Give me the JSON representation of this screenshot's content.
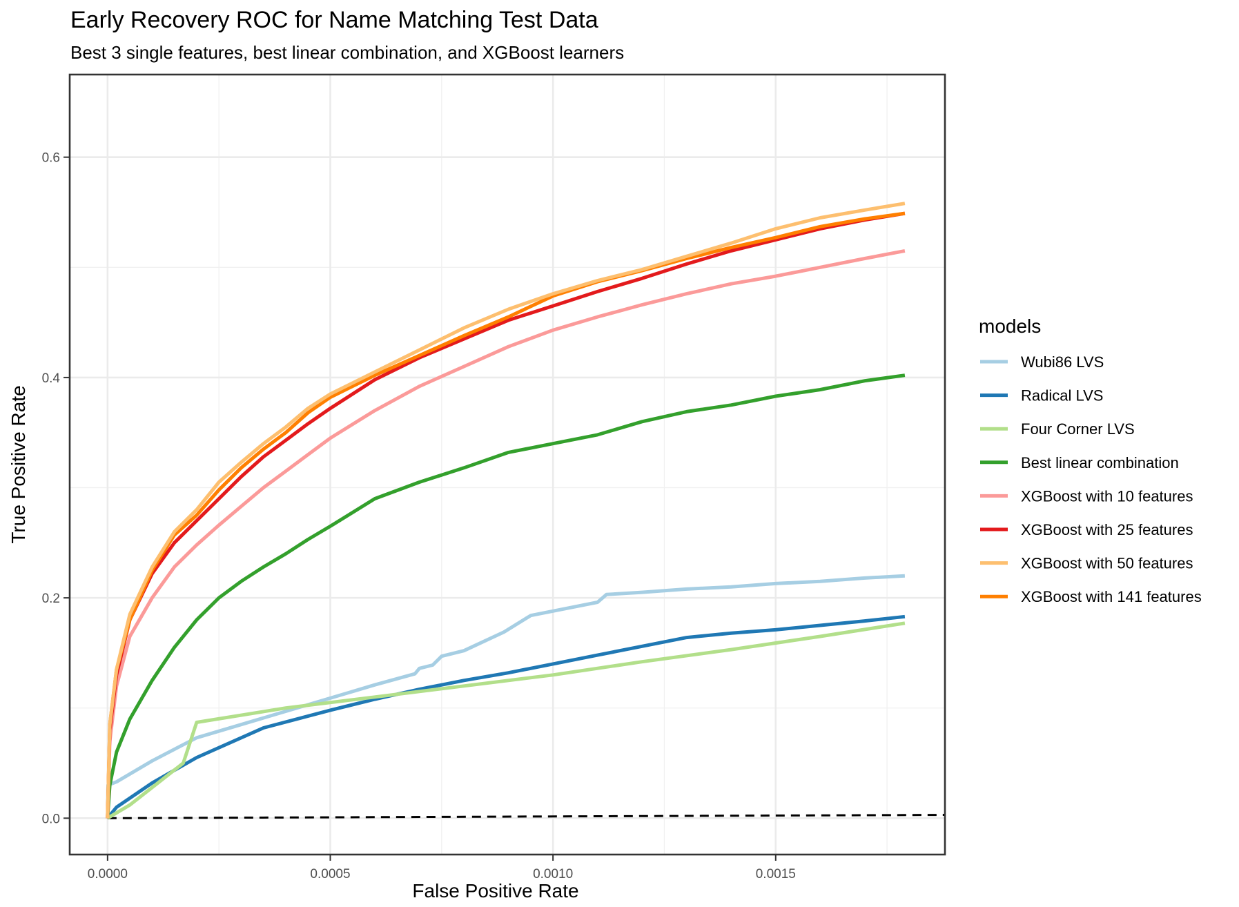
{
  "chart_data": {
    "type": "line",
    "title": "Early Recovery ROC for Name Matching Test Data",
    "subtitle": "Best 3 single features, best linear combination, and XGBoost learners",
    "xlabel": "False Positive Rate",
    "ylabel": "True Positive Rate",
    "xlim": [
      -8.5e-05,
      0.00188
    ],
    "ylim": [
      -0.033,
      0.675
    ],
    "x_ticks": [
      0,
      0.0005,
      0.001,
      0.0015
    ],
    "x_tick_labels": [
      "0.0000",
      "0.0005",
      "0.0010",
      "0.0015"
    ],
    "y_ticks": [
      0,
      0.2,
      0.4,
      0.6
    ],
    "y_tick_labels": [
      "0.0",
      "0.2",
      "0.4",
      "0.6"
    ],
    "grid": true,
    "legend_title": "models",
    "legend_position": "right",
    "reference_line": {
      "style": "dashed",
      "color": "#000000",
      "x": [
        0,
        0.00188
      ],
      "y": [
        0,
        0.003
      ]
    },
    "series": [
      {
        "name": "Wubi86 LVS",
        "color": "#a6cee3",
        "x": [
          0,
          1e-06,
          2e-05,
          0.0001,
          0.0002,
          0.0003,
          0.0004,
          0.0005,
          0.0006,
          0.00069,
          0.0007,
          0.00073,
          0.00075,
          0.0008,
          0.00089,
          0.00095,
          0.001,
          0.0011,
          0.00112,
          0.0012,
          0.0013,
          0.0014,
          0.0015,
          0.0016,
          0.0017,
          0.00179
        ],
        "y": [
          0,
          0.03,
          0.033,
          0.052,
          0.073,
          0.085,
          0.097,
          0.109,
          0.121,
          0.131,
          0.136,
          0.139,
          0.147,
          0.152,
          0.169,
          0.184,
          0.188,
          0.196,
          0.203,
          0.205,
          0.208,
          0.21,
          0.213,
          0.215,
          0.218,
          0.22
        ]
      },
      {
        "name": "Radical LVS",
        "color": "#1f78b4",
        "x": [
          0,
          2e-05,
          0.0001,
          0.0002,
          0.00035,
          0.0005,
          0.0006,
          0.0007,
          0.0008,
          0.0009,
          0.001,
          0.0011,
          0.0012,
          0.0013,
          0.0014,
          0.0015,
          0.0016,
          0.0017,
          0.00179
        ],
        "y": [
          0,
          0.01,
          0.032,
          0.055,
          0.082,
          0.098,
          0.108,
          0.117,
          0.125,
          0.132,
          0.14,
          0.148,
          0.156,
          0.164,
          0.168,
          0.171,
          0.175,
          0.179,
          0.183
        ]
      },
      {
        "name": "Four Corner LVS",
        "color": "#b2df8a",
        "x": [
          0,
          5e-05,
          0.00017,
          0.0002,
          0.0004,
          0.0006,
          0.0008,
          0.001,
          0.0012,
          0.0014,
          0.0016,
          0.00179
        ],
        "y": [
          0,
          0.012,
          0.05,
          0.087,
          0.1,
          0.11,
          0.12,
          0.13,
          0.142,
          0.153,
          0.165,
          0.177
        ]
      },
      {
        "name": "Best linear combination",
        "color": "#33a02c",
        "x": [
          0,
          5e-06,
          2e-05,
          5e-05,
          0.0001,
          0.00015,
          0.0002,
          0.00025,
          0.0003,
          0.00035,
          0.0004,
          0.00045,
          0.0005,
          0.0006,
          0.0007,
          0.0008,
          0.0009,
          0.001,
          0.0011,
          0.0012,
          0.0013,
          0.0014,
          0.0015,
          0.0016,
          0.0017,
          0.00179
        ],
        "y": [
          0,
          0.03,
          0.06,
          0.09,
          0.125,
          0.155,
          0.18,
          0.2,
          0.215,
          0.228,
          0.24,
          0.253,
          0.265,
          0.29,
          0.305,
          0.318,
          0.332,
          0.34,
          0.348,
          0.36,
          0.369,
          0.375,
          0.383,
          0.389,
          0.397,
          0.402
        ]
      },
      {
        "name": "XGBoost with 10 features",
        "color": "#fb9a99",
        "x": [
          0,
          5e-06,
          2e-05,
          5e-05,
          0.0001,
          0.00015,
          0.0002,
          0.00025,
          0.0003,
          0.00035,
          0.0004,
          0.00045,
          0.0005,
          0.0006,
          0.0007,
          0.0008,
          0.0009,
          0.001,
          0.0011,
          0.0012,
          0.0013,
          0.0014,
          0.0015,
          0.0016,
          0.0017,
          0.00179
        ],
        "y": [
          0,
          0.07,
          0.12,
          0.165,
          0.2,
          0.228,
          0.248,
          0.266,
          0.283,
          0.3,
          0.315,
          0.33,
          0.345,
          0.37,
          0.392,
          0.41,
          0.428,
          0.443,
          0.455,
          0.466,
          0.476,
          0.485,
          0.492,
          0.5,
          0.508,
          0.515
        ]
      },
      {
        "name": "XGBoost with 25 features",
        "color": "#e31a1c",
        "x": [
          0,
          5e-06,
          2e-05,
          5e-05,
          0.0001,
          0.00015,
          0.0002,
          0.00025,
          0.0003,
          0.00035,
          0.0004,
          0.00045,
          0.0005,
          0.0006,
          0.0007,
          0.0008,
          0.0009,
          0.001,
          0.0011,
          0.0012,
          0.0013,
          0.0014,
          0.0015,
          0.0016,
          0.0017,
          0.00179
        ],
        "y": [
          0,
          0.08,
          0.13,
          0.18,
          0.222,
          0.25,
          0.27,
          0.29,
          0.31,
          0.328,
          0.343,
          0.358,
          0.372,
          0.398,
          0.418,
          0.435,
          0.452,
          0.465,
          0.478,
          0.49,
          0.503,
          0.515,
          0.525,
          0.535,
          0.543,
          0.549
        ]
      },
      {
        "name": "XGBoost with 50 features",
        "color": "#fdbf6f",
        "x": [
          0,
          5e-06,
          2e-05,
          5e-05,
          0.0001,
          0.00015,
          0.0002,
          0.00025,
          0.0003,
          0.00035,
          0.0004,
          0.00045,
          0.0005,
          0.0006,
          0.0007,
          0.0008,
          0.0009,
          0.001,
          0.0011,
          0.0012,
          0.0013,
          0.0014,
          0.0015,
          0.0016,
          0.0017,
          0.00179
        ],
        "y": [
          0,
          0.085,
          0.135,
          0.185,
          0.228,
          0.26,
          0.28,
          0.305,
          0.323,
          0.34,
          0.355,
          0.372,
          0.385,
          0.405,
          0.425,
          0.445,
          0.462,
          0.476,
          0.488,
          0.498,
          0.51,
          0.522,
          0.535,
          0.545,
          0.552,
          0.558
        ]
      },
      {
        "name": "XGBoost with 141 features",
        "color": "#ff7f00",
        "x": [
          0,
          5e-06,
          2e-05,
          5e-05,
          0.0001,
          0.00015,
          0.0002,
          0.00025,
          0.0003,
          0.00035,
          0.0004,
          0.00045,
          0.0005,
          0.0006,
          0.0007,
          0.0008,
          0.0009,
          0.001,
          0.0011,
          0.0012,
          0.0013,
          0.0014,
          0.0015,
          0.0016,
          0.0017,
          0.00179
        ],
        "y": [
          0,
          0.085,
          0.135,
          0.18,
          0.225,
          0.257,
          0.275,
          0.298,
          0.318,
          0.335,
          0.35,
          0.368,
          0.382,
          0.402,
          0.42,
          0.438,
          0.455,
          0.474,
          0.487,
          0.497,
          0.508,
          0.518,
          0.527,
          0.537,
          0.544,
          0.549
        ]
      }
    ]
  }
}
